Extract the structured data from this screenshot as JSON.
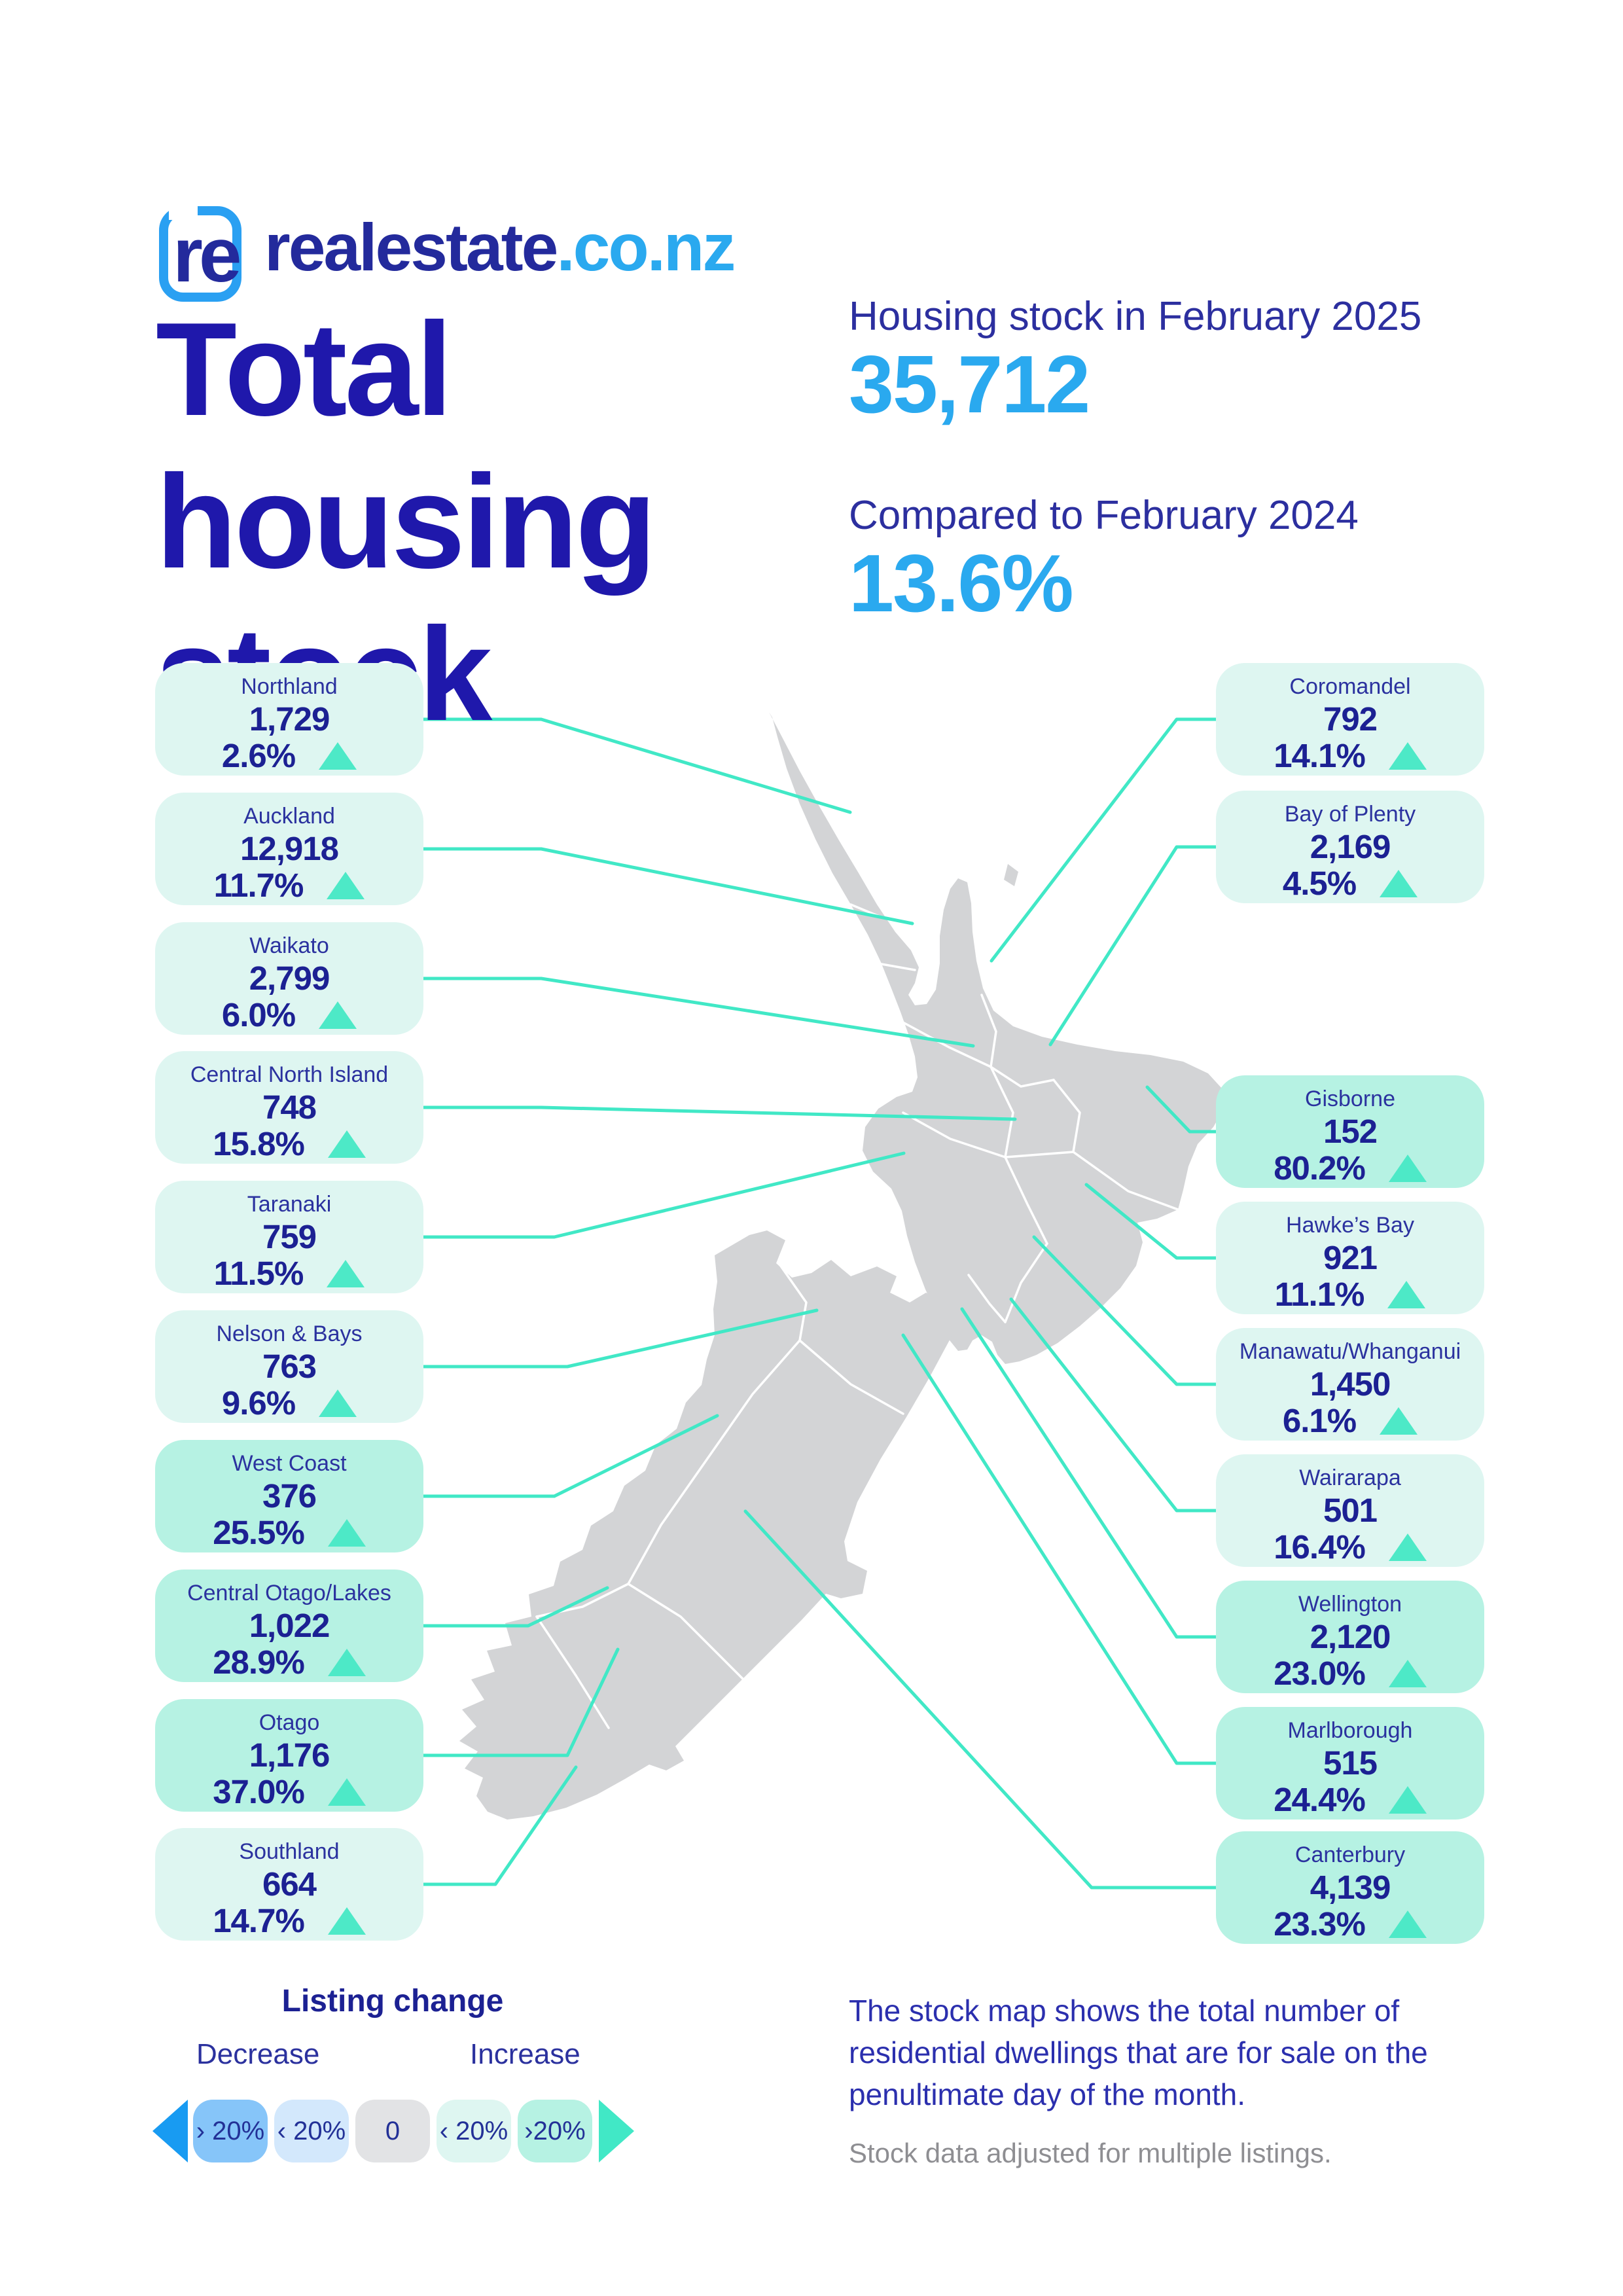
{
  "brand": {
    "icon": "re-logo-icon",
    "icon_letters": "re",
    "wordmark": "realestate",
    "suffix": ".co.nz"
  },
  "title": "Total housing stock",
  "summary": {
    "stock_label": "Housing stock in February 2025",
    "stock_value": "35,712",
    "compare_label": "Compared to February 2024",
    "compare_value": "13.6%"
  },
  "left_regions": [
    {
      "name": "Northland",
      "stock": "1,729",
      "change": "2.6%"
    },
    {
      "name": "Auckland",
      "stock": "12,918",
      "change": "11.7%"
    },
    {
      "name": "Waikato",
      "stock": "2,799",
      "change": "6.0%"
    },
    {
      "name": "Central North Island",
      "stock": "748",
      "change": "15.8%"
    },
    {
      "name": "Taranaki",
      "stock": "759",
      "change": "11.5%"
    },
    {
      "name": "Nelson & Bays",
      "stock": "763",
      "change": "9.6%"
    },
    {
      "name": "West Coast",
      "stock": "376",
      "change": "25.5%"
    },
    {
      "name": "Central Otago/Lakes",
      "stock": "1,022",
      "change": "28.9%"
    },
    {
      "name": "Otago",
      "stock": "1,176",
      "change": "37.0%"
    },
    {
      "name": "Southland",
      "stock": "664",
      "change": "14.7%"
    }
  ],
  "right_regions": [
    {
      "name": "Coromandel",
      "stock": "792",
      "change": "14.1%"
    },
    {
      "name": "Bay of Plenty",
      "stock": "2,169",
      "change": "4.5%"
    },
    {
      "name": "Gisborne",
      "stock": "152",
      "change": "80.2%"
    },
    {
      "name": "Hawke’s Bay",
      "stock": "921",
      "change": "11.1%"
    },
    {
      "name": "Manawatu/Whanganui",
      "stock": "1,450",
      "change": "6.1%"
    },
    {
      "name": "Wairarapa",
      "stock": "501",
      "change": "16.4%"
    },
    {
      "name": "Wellington",
      "stock": "2,120",
      "change": "23.0%"
    },
    {
      "name": "Marlborough",
      "stock": "515",
      "change": "24.4%"
    },
    {
      "name": "Canterbury",
      "stock": "4,139",
      "change": "23.3%"
    }
  ],
  "legend": {
    "title": "Listing change",
    "decrease_label": "Decrease",
    "increase_label": "Increase",
    "bins": [
      {
        "label": "› 20%",
        "color": "#86c5f9"
      },
      {
        "label": "‹ 20%",
        "color": "#d3e8fc"
      },
      {
        "label": "0",
        "color": "#e2e3e5"
      },
      {
        "label": "‹ 20%",
        "color": "#def6f1"
      },
      {
        "label": "›20%",
        "color": "#b6f2e3"
      }
    ],
    "decrease_arrow_color": "#189bf2",
    "increase_arrow_color": "#41e8c6"
  },
  "footer": {
    "description": "The stock map shows the total number of residential dwellings that are for sale on the penultimate day of the month.",
    "note": "Stock data adjusted for multiple listings."
  },
  "colors": {
    "navy_title": "#1f18ab",
    "navy_text": "#1c2193",
    "accent_blue": "#2aa9ef",
    "teal_line": "#41e8c6",
    "card_light": "#def6f1",
    "card_dark": "#b6f2e3",
    "map_gray": "#d3d4d6",
    "up_triangle": "#4de9c7"
  },
  "up_threshold_dark_card": "20"
}
